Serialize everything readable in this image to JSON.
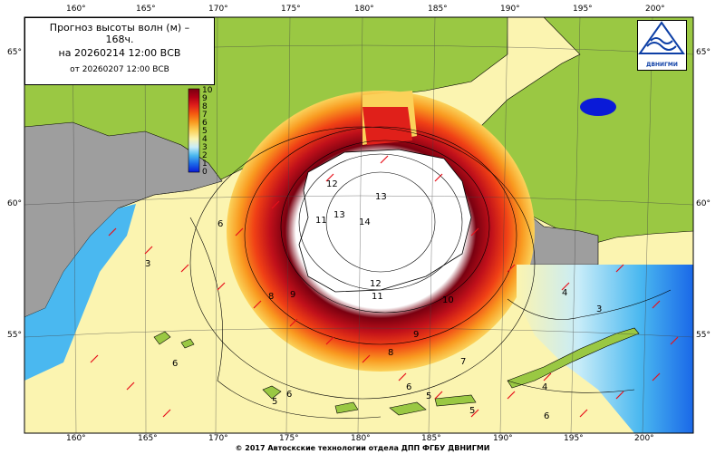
{
  "title": {
    "line1": "Прогноз высоты волн (м) –",
    "line2": "168ч.",
    "line3": "на 20260214 12:00 ВСВ",
    "line4": "от 20260207 12:00 ВСВ"
  },
  "axes": {
    "longitude_labels": [
      "160°",
      "165°",
      "170°",
      "175°",
      "180°",
      "185°",
      "190°",
      "195°",
      "200°"
    ],
    "latitude_labels": [
      "65°",
      "60°",
      "55°"
    ]
  },
  "color_scale": {
    "unit": "м",
    "labels": [
      "10",
      "9",
      "8",
      "7",
      "6",
      "5",
      "4",
      "3",
      "2",
      "1",
      "0"
    ],
    "colors": [
      "#7a0010",
      "#b00015",
      "#e0201a",
      "#f45a10",
      "#f99a20",
      "#fbd25a",
      "#fbf4b0",
      "#c8ecf8",
      "#4ab8f0",
      "#1a68e8",
      "#0a1ad8"
    ]
  },
  "contour_labels": [
    "14",
    "13",
    "13",
    "12",
    "12",
    "11",
    "11",
    "10",
    "9",
    "9",
    "8",
    "8",
    "7",
    "6",
    "6",
    "6",
    "5",
    "5",
    "5",
    "4",
    "4",
    "3",
    "3",
    "6",
    "6"
  ],
  "logo": {
    "text": "ДВНИГМИ"
  },
  "footer": "© 2017 Автоскские технологии отдела ДПП ФГБУ ДВНИГМИ",
  "colors": {
    "land": "#9ac843",
    "land_nodata": "#9e9e9e",
    "ocean_low": "#fbf4b0",
    "ocean_high": "#7a0010",
    "arrow": "#e8101a"
  }
}
